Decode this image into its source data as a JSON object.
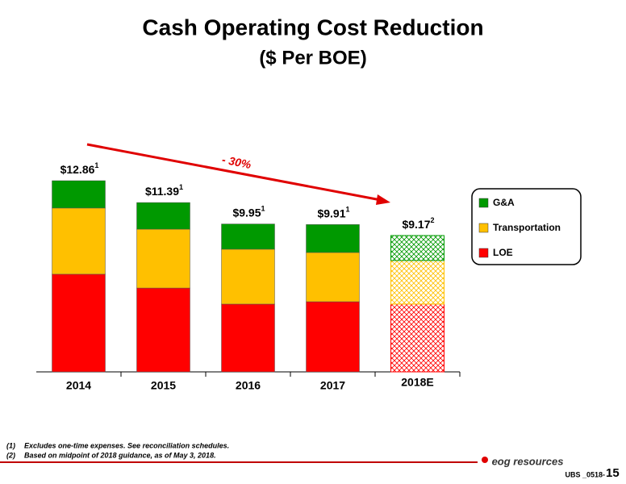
{
  "chart_data": {
    "type": "stacked-bar",
    "title": "Cash Operating Cost Reduction",
    "subtitle": "($ Per BOE)",
    "categories": [
      "2014",
      "2015",
      "2016",
      "2017",
      "2018E"
    ],
    "series": [
      {
        "name": "LOE",
        "color": "#ff0000",
        "values": [
          6.57,
          5.64,
          4.56,
          4.72,
          4.56
        ]
      },
      {
        "name": "Transportation",
        "color": "#ffc000",
        "values": [
          4.45,
          3.96,
          3.69,
          3.31,
          2.93
        ]
      },
      {
        "name": "G&A",
        "color": "#009900",
        "values": [
          1.84,
          1.79,
          1.7,
          1.88,
          1.68
        ]
      }
    ],
    "totals": [
      12.86,
      11.39,
      9.95,
      9.91,
      9.17
    ],
    "total_labels": [
      "$12.86",
      "$11.39",
      "$9.95",
      "$9.91",
      "$9.17"
    ],
    "total_notes": [
      "1",
      "1",
      "1",
      "1",
      "2"
    ],
    "hatched": [
      false,
      false,
      false,
      false,
      true
    ],
    "annotation": "- 30%",
    "footnotes": [
      {
        "marker": "(1)",
        "text": "Excludes one-time expenses. See reconciliation schedules."
      },
      {
        "marker": "(2)",
        "text": "Based on midpoint of 2018 guidance, as of May 3, 2018."
      }
    ],
    "footer": {
      "logo": "eog resources",
      "code": "UBS _0518-",
      "page": "15"
    }
  }
}
